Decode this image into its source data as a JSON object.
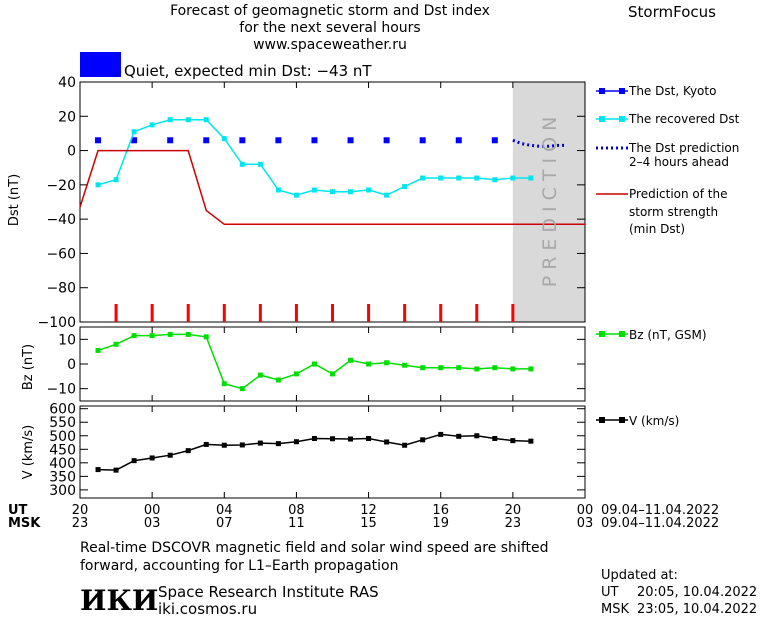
{
  "header": {
    "title_line1": "Forecast of geomagnetic storm and Dst index",
    "title_line2": "for the next several hours",
    "url": "www.spaceweather.ru",
    "brand": "StormFocus"
  },
  "status": {
    "color": "#0000ff",
    "text": "Quiet, expected min Dst: −43 nT"
  },
  "prediction_label": "PREDICTION",
  "legend": {
    "dst_kyoto": "The Dst, Kyoto",
    "recovered": "The recovered Dst",
    "prediction_line1": "The Dst prediction",
    "prediction_line2": "2–4 hours ahead",
    "storm_line1": "Prediction of the",
    "storm_line2": "storm strength",
    "storm_line3": "(min Dst)",
    "bz": "Bz (nT, GSM)",
    "v": "V (km/s)"
  },
  "time_axis": {
    "ut_label": "UT",
    "msk_label": "MSK",
    "ut_ticks": [
      "20",
      "00",
      "04",
      "08",
      "12",
      "16",
      "20",
      "00"
    ],
    "msk_ticks": [
      "23",
      "03",
      "07",
      "11",
      "15",
      "19",
      "23",
      "03"
    ],
    "ut_range": "09.04–11.04.2022",
    "msk_range": "09.04–11.04.2022"
  },
  "footer": {
    "note_line1": "Real-time DSCOVR magnetic field and solar wind speed are shifted",
    "note_line2": "forward, accounting for L1–Earth propagation",
    "logo_text": "ИКИ",
    "institute": "Space Research Institute RAS",
    "site": "iki.cosmos.ru",
    "updated_label": "Updated at:",
    "updated_ut_label": "UT",
    "updated_ut": "20:05, 10.04.2022",
    "updated_msk_label": "MSK",
    "updated_msk": "23:05, 10.04.2022"
  },
  "colors": {
    "kyoto": "#0000ff",
    "recovered": "#00e5ee",
    "prediction": "#0000cd",
    "storm": "#cc0000",
    "bz": "#00dd00",
    "v": "#000000",
    "prediction_band": "#d9d9d9",
    "ticks": "#ff0000"
  },
  "chart_data": [
    {
      "type": "line",
      "x_unit": "hours since 20 UT 09.04.2022",
      "ylabel": "Dst (nT)",
      "ylim": [
        -100,
        40
      ],
      "yticks": [
        40,
        20,
        0,
        -20,
        -40,
        -60,
        -80,
        -100
      ],
      "xlim": [
        0,
        28
      ],
      "prediction_band": [
        24,
        28
      ],
      "tick_marks_x": [
        2,
        4,
        6,
        8,
        10,
        12,
        14,
        16,
        18,
        20,
        22,
        24
      ],
      "series": [
        {
          "name": "The Dst, Kyoto",
          "style": "squares",
          "x": [
            1,
            3,
            5,
            7,
            9,
            11,
            13,
            15,
            17,
            19,
            21,
            23
          ],
          "values": [
            6,
            6,
            6,
            6,
            6,
            6,
            6,
            6,
            6,
            6,
            6,
            6
          ]
        },
        {
          "name": "The recovered Dst",
          "style": "line-squares",
          "x": [
            1,
            2,
            3,
            4,
            5,
            6,
            7,
            8,
            9,
            10,
            11,
            12,
            13,
            14,
            15,
            16,
            17,
            18,
            19,
            20,
            21,
            22,
            23,
            24,
            25
          ],
          "values": [
            -20,
            -17,
            11,
            15,
            18,
            18,
            18,
            7,
            -8,
            -8,
            -23,
            -26,
            -23,
            -24,
            -24,
            -23,
            -26,
            -21,
            -16,
            -16,
            -16,
            -16,
            -17,
            -16,
            -16
          ]
        },
        {
          "name": "The Dst prediction 2–4 hours ahead",
          "style": "dotted",
          "x": [
            24,
            24.5,
            25,
            25.5,
            26,
            26.5,
            27
          ],
          "values": [
            6,
            4,
            3,
            2.5,
            2.5,
            3,
            3
          ]
        },
        {
          "name": "Prediction of the storm strength (min Dst)",
          "style": "line",
          "x": [
            0,
            1,
            2,
            3,
            4,
            5,
            6,
            7,
            8,
            28
          ],
          "values": [
            -33,
            0,
            0,
            0,
            0,
            0,
            0,
            -35,
            -43,
            -43
          ]
        }
      ]
    },
    {
      "type": "line",
      "ylabel": "Bz (nT)",
      "ylim": [
        -15,
        15
      ],
      "yticks": [
        10,
        0,
        -10
      ],
      "xlim": [
        0,
        28
      ],
      "series": [
        {
          "name": "Bz (nT, GSM)",
          "x": [
            1,
            2,
            3,
            4,
            5,
            6,
            7,
            8,
            9,
            10,
            11,
            12,
            13,
            14,
            15,
            16,
            17,
            18,
            19,
            20,
            21,
            22,
            23,
            24,
            25
          ],
          "values": [
            5.5,
            8,
            11.5,
            11.5,
            12,
            12,
            11,
            -8,
            -10,
            -4.5,
            -6.5,
            -4,
            0,
            -4,
            1.5,
            0,
            0.5,
            -0.5,
            -1.5,
            -1.5,
            -1.5,
            -2,
            -1.5,
            -2,
            -2
          ]
        }
      ]
    },
    {
      "type": "line",
      "ylabel": "V (km/s)",
      "ylim": [
        270,
        610
      ],
      "yticks": [
        600,
        550,
        500,
        450,
        400,
        350,
        300
      ],
      "xlim": [
        0,
        28
      ],
      "series": [
        {
          "name": "V (km/s)",
          "x": [
            1,
            2,
            3,
            4,
            5,
            6,
            7,
            8,
            9,
            10,
            11,
            12,
            13,
            14,
            15,
            16,
            17,
            18,
            19,
            20,
            21,
            22,
            23,
            24,
            25
          ],
          "values": [
            375,
            373,
            408,
            418,
            428,
            445,
            468,
            465,
            466,
            473,
            471,
            478,
            490,
            489,
            488,
            490,
            477,
            465,
            485,
            505,
            498,
            500,
            490,
            482,
            480
          ]
        }
      ]
    }
  ]
}
